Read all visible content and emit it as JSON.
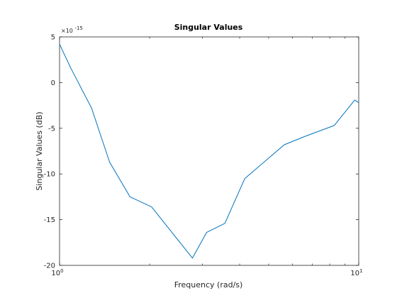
{
  "chart_data": {
    "type": "line",
    "title": "Singular Values",
    "xlabel": "Frequency (rad/s)",
    "ylabel": "Singular Values (dB)",
    "x_scale": "log",
    "xlim": [
      1,
      10
    ],
    "ylim": [
      -20,
      5
    ],
    "y_multiplier_label": "×10",
    "y_multiplier_exponent": "-15",
    "x_ticks": [
      {
        "value": 1,
        "base": "10",
        "exp": "0"
      },
      {
        "value": 10,
        "base": "10",
        "exp": "1"
      }
    ],
    "y_ticks": [
      {
        "value": 5,
        "label": "5"
      },
      {
        "value": 0,
        "label": "0"
      },
      {
        "value": -5,
        "label": "-5"
      },
      {
        "value": -10,
        "label": "-10"
      },
      {
        "value": -15,
        "label": "-15"
      },
      {
        "value": -20,
        "label": "-20"
      }
    ],
    "grid": false,
    "series": [
      {
        "color": "#0072bd",
        "x": [
          1.0,
          1.09,
          1.28,
          1.47,
          1.72,
          2.03,
          2.78,
          3.1,
          3.57,
          4.16,
          5.64,
          6.6,
          8.28,
          9.7,
          10.0
        ],
        "y": [
          4.2,
          1.6,
          -2.8,
          -8.7,
          -12.5,
          -13.6,
          -19.2,
          -16.4,
          -15.4,
          -10.5,
          -6.8,
          -5.9,
          -4.7,
          -1.9,
          -2.2
        ]
      }
    ]
  }
}
